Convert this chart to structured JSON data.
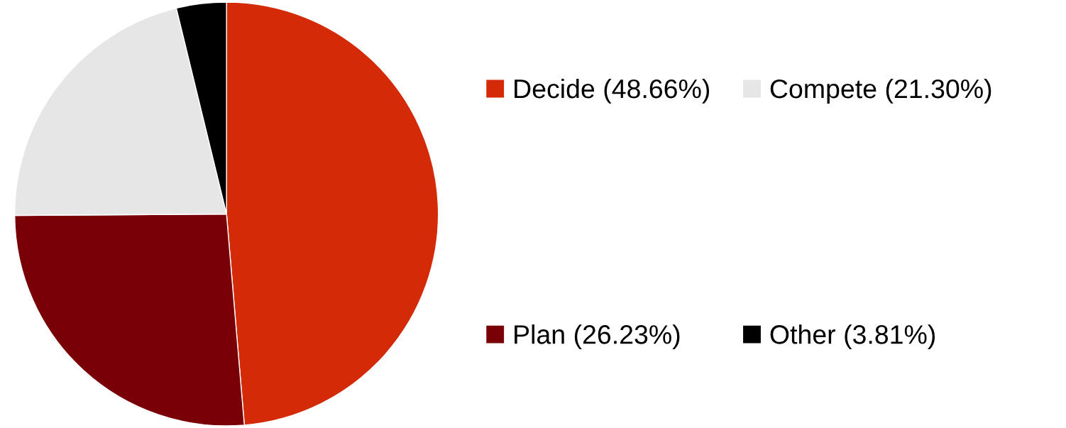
{
  "chart_data": {
    "type": "pie",
    "categories": [
      "Decide (48.66%)",
      "Plan (26.23%)",
      "Compete (21.30%)",
      "Other (3.81%)"
    ],
    "values": [
      48.66,
      26.23,
      21.3,
      3.81
    ],
    "colors": [
      "#d42a08",
      "#7a0008",
      "#e6e6e6",
      "#000000"
    ],
    "legend": "right"
  }
}
